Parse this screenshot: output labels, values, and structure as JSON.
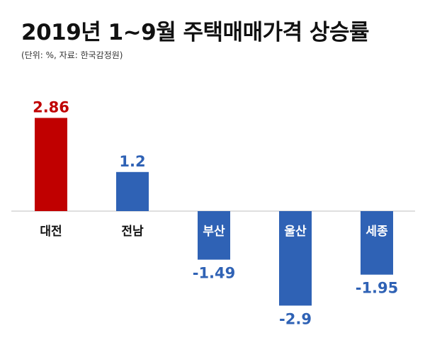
{
  "chart_data": {
    "type": "bar",
    "title": "2019년 1~9월 주택매매가격 상승률",
    "subtitle": "(단위: %, 자료: 한국감정원)",
    "categories": [
      "대전",
      "전남",
      "부산",
      "울산",
      "세종"
    ],
    "values": [
      2.86,
      1.2,
      -1.49,
      -2.9,
      -1.95
    ],
    "value_labels": [
      "2.86",
      "1.2",
      "-1.49",
      "-2.9",
      "-1.95"
    ],
    "colors": {
      "highlight": "#c00000",
      "default": "#2f62b5",
      "axis": "#bfbfbf"
    },
    "highlight_index": 0,
    "xlabel": "",
    "ylabel": "",
    "ylim": [
      -3,
      3
    ],
    "grid": false,
    "legend": "none"
  }
}
